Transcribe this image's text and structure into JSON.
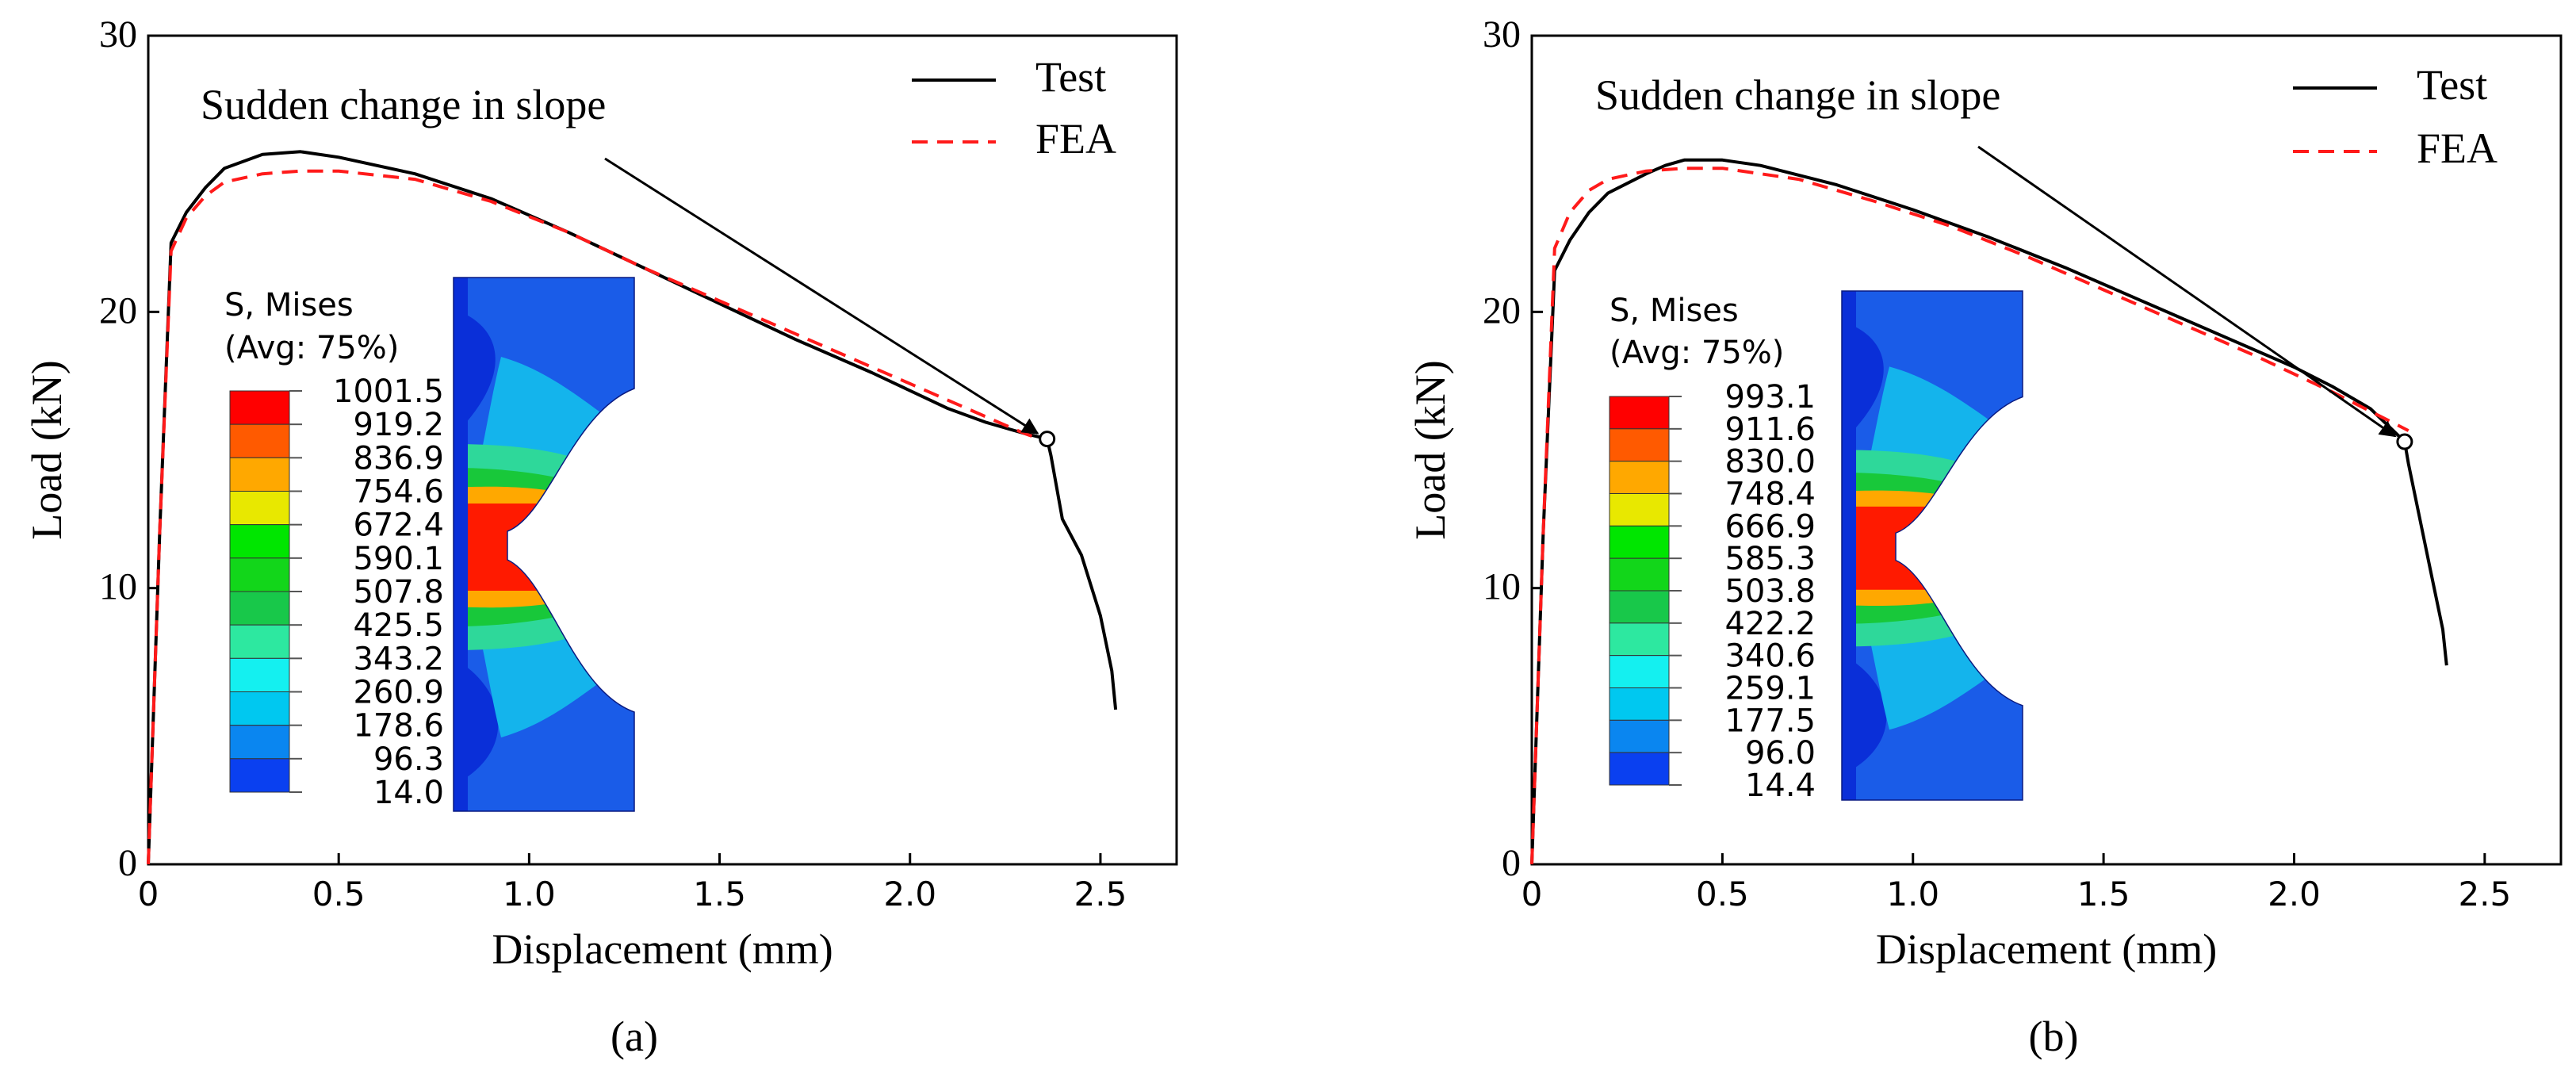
{
  "figure": {
    "panels": [
      "(a)",
      "(b)"
    ]
  },
  "colors": {
    "test": "#000000",
    "fea": "#ff1a1a",
    "legend_bands": [
      "#ff0000",
      "#ff5a00",
      "#ffa800",
      "#e8e800",
      "#00e600",
      "#12d61a",
      "#18c84a",
      "#2de8a0",
      "#14f0f0",
      "#00c8f0",
      "#0a86f0",
      "#0a40f0"
    ]
  },
  "chart_data": [
    {
      "type": "line",
      "panel_label": "(a)",
      "xlabel": "Displacement (mm)",
      "ylabel": "Load (kN)",
      "xlim": [
        0,
        2.7
      ],
      "ylim": [
        0,
        30
      ],
      "xticks": [
        "0",
        "0.5",
        "1.0",
        "1.5",
        "2.0",
        "2.5"
      ],
      "xtick_values": [
        0,
        0.5,
        1.0,
        1.5,
        2.0,
        2.5
      ],
      "yticks": [
        "0",
        "10",
        "20",
        "30"
      ],
      "ytick_values": [
        0,
        10,
        20,
        30
      ],
      "annotation": "Sudden change in slope",
      "annotation_point": [
        2.36,
        15.4
      ],
      "legend": [
        "Test",
        "FEA"
      ],
      "series": [
        {
          "name": "Test",
          "x": [
            0,
            0.03,
            0.06,
            0.1,
            0.15,
            0.2,
            0.3,
            0.4,
            0.5,
            0.7,
            0.9,
            1.1,
            1.3,
            1.5,
            1.7,
            1.9,
            2.1,
            2.2,
            2.3,
            2.36,
            2.37,
            2.4,
            2.45,
            2.5,
            2.53,
            2.54
          ],
          "y": [
            0,
            12,
            22.5,
            23.6,
            24.5,
            25.2,
            25.7,
            25.8,
            25.6,
            25.0,
            24.1,
            22.9,
            21.6,
            20.3,
            19.0,
            17.8,
            16.5,
            16.0,
            15.6,
            15.4,
            14.8,
            12.5,
            11.2,
            9.0,
            7.0,
            5.6
          ]
        },
        {
          "name": "FEA",
          "x": [
            0,
            0.03,
            0.06,
            0.1,
            0.15,
            0.2,
            0.3,
            0.4,
            0.5,
            0.7,
            0.9,
            1.1,
            1.3,
            1.5,
            1.7,
            1.9,
            2.1,
            2.2,
            2.3,
            2.36
          ],
          "y": [
            0,
            12,
            22.2,
            23.4,
            24.2,
            24.7,
            25.0,
            25.1,
            25.1,
            24.8,
            24.0,
            22.9,
            21.6,
            20.4,
            19.2,
            18.0,
            16.8,
            16.2,
            15.6,
            15.3
          ]
        }
      ],
      "contour_legend": {
        "title_line1": "S, Mises",
        "title_line2": "(Avg: 75%)",
        "values": [
          "1001.5",
          "919.2",
          "836.9",
          "754.6",
          "672.4",
          "590.1",
          "507.8",
          "425.5",
          "343.2",
          "260.9",
          "178.6",
          "96.3",
          "14.0"
        ]
      }
    },
    {
      "type": "line",
      "panel_label": "(b)",
      "xlabel": "Displacement (mm)",
      "ylabel": "Load (kN)",
      "xlim": [
        0,
        2.7
      ],
      "ylim": [
        0,
        30
      ],
      "xticks": [
        "0",
        "0.5",
        "1.0",
        "1.5",
        "2.0",
        "2.5"
      ],
      "xtick_values": [
        0,
        0.5,
        1.0,
        1.5,
        2.0,
        2.5
      ],
      "yticks": [
        "0",
        "10",
        "20",
        "30"
      ],
      "ytick_values": [
        0,
        10,
        20,
        30
      ],
      "annotation": "Sudden change in slope",
      "annotation_point": [
        2.29,
        15.3
      ],
      "legend": [
        "Test",
        "FEA"
      ],
      "series": [
        {
          "name": "Test",
          "x": [
            0,
            0.03,
            0.06,
            0.1,
            0.15,
            0.2,
            0.3,
            0.35,
            0.4,
            0.5,
            0.6,
            0.8,
            1.0,
            1.2,
            1.4,
            1.6,
            1.8,
            2.0,
            2.1,
            2.2,
            2.29,
            2.3,
            2.33,
            2.36,
            2.39,
            2.4
          ],
          "y": [
            0,
            12,
            21.5,
            22.6,
            23.6,
            24.3,
            25.0,
            25.3,
            25.5,
            25.5,
            25.3,
            24.6,
            23.7,
            22.7,
            21.6,
            20.4,
            19.2,
            18.0,
            17.3,
            16.5,
            15.3,
            14.5,
            12.5,
            10.5,
            8.5,
            7.2
          ]
        },
        {
          "name": "FEA",
          "x": [
            0,
            0.03,
            0.06,
            0.1,
            0.15,
            0.2,
            0.3,
            0.4,
            0.5,
            0.7,
            0.9,
            1.1,
            1.3,
            1.5,
            1.7,
            1.9,
            2.1,
            2.2,
            2.3
          ],
          "y": [
            0,
            12,
            22.3,
            23.6,
            24.4,
            24.8,
            25.1,
            25.2,
            25.2,
            24.8,
            24.0,
            23.1,
            22.0,
            20.8,
            19.6,
            18.4,
            17.1,
            16.4,
            15.7
          ]
        }
      ],
      "contour_legend": {
        "title_line1": "S, Mises",
        "title_line2": "(Avg: 75%)",
        "values": [
          "993.1",
          "911.6",
          "830.0",
          "748.4",
          "666.9",
          "585.3",
          "503.8",
          "422.2",
          "340.6",
          "259.1",
          "177.5",
          "96.0",
          "14.4"
        ]
      }
    }
  ]
}
